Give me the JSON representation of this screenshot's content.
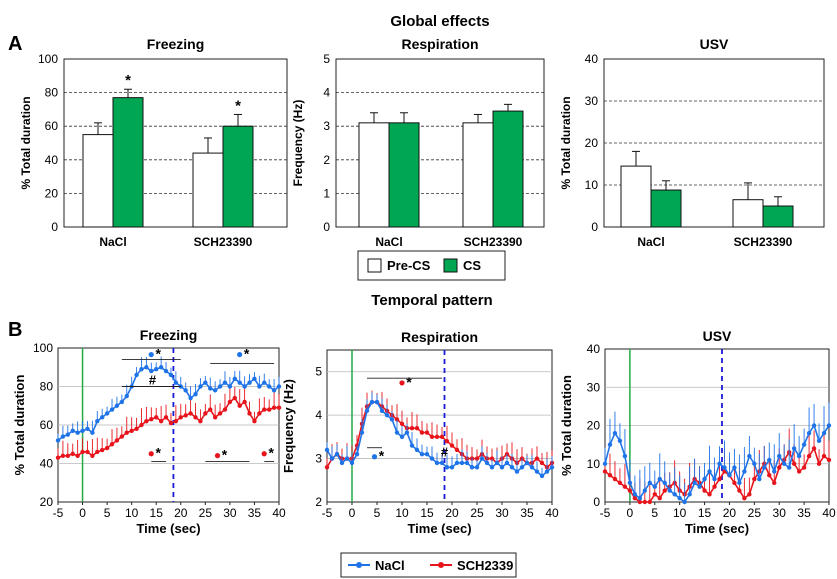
{
  "figure": {
    "panel_a_letter": "A",
    "panel_b_letter": "B",
    "section_a_title": "Global effects",
    "section_b_title": "Temporal pattern"
  },
  "legend_a": {
    "items": [
      "Pre-CS",
      "CS"
    ],
    "colors": [
      "#ffffff",
      "#00a651"
    ]
  },
  "legend_b": {
    "items": [
      "NaCl",
      "SCH2339"
    ],
    "colors": [
      "#1e73e8",
      "#e8141c"
    ]
  },
  "colors": {
    "precs": "#ffffff",
    "cs": "#00a651",
    "nacl": "#1e73e8",
    "sch": "#e8141c",
    "onset": "#22aa44",
    "offset": "#1a1ad6"
  },
  "chart_data": [
    {
      "type": "bar",
      "title": "Freezing",
      "ylabel": "% Total duration",
      "categories": [
        "NaCl",
        "SCH23390"
      ],
      "ylim": [
        0,
        100
      ],
      "yticks": [
        "0",
        "20",
        "40",
        "60",
        "80",
        "100"
      ],
      "series": [
        {
          "name": "Pre-CS",
          "values": [
            55,
            44
          ],
          "errors": [
            7,
            9
          ]
        },
        {
          "name": "CS",
          "values": [
            77,
            60
          ],
          "errors": [
            5,
            7
          ]
        }
      ],
      "annotations": [
        "*",
        "*"
      ],
      "grid": "dashed"
    },
    {
      "type": "bar",
      "title": "Respiration",
      "ylabel": "Frequency (Hz)",
      "categories": [
        "NaCl",
        "SCH23390"
      ],
      "ylim": [
        0,
        5
      ],
      "yticks": [
        "0",
        "1",
        "2",
        "3",
        "4",
        "5"
      ],
      "series": [
        {
          "name": "Pre-CS",
          "values": [
            3.1,
            3.1
          ],
          "errors": [
            0.3,
            0.25
          ]
        },
        {
          "name": "CS",
          "values": [
            3.1,
            3.45
          ],
          "errors": [
            0.3,
            0.2
          ]
        }
      ],
      "annotations": [],
      "grid": "dashed"
    },
    {
      "type": "bar",
      "title": "USV",
      "ylabel": "% Total duration",
      "categories": [
        "NaCl",
        "SCH23390"
      ],
      "ylim": [
        0,
        40
      ],
      "yticks": [
        "0",
        "10",
        "20",
        "30",
        "40"
      ],
      "series": [
        {
          "name": "Pre-CS",
          "values": [
            14.5,
            6.5
          ],
          "errors": [
            3.5,
            4
          ]
        },
        {
          "name": "CS",
          "values": [
            8.8,
            5.0
          ],
          "errors": [
            2.2,
            2.2
          ]
        }
      ],
      "annotations": [],
      "grid": "dashed"
    },
    {
      "type": "line",
      "title": "Freezing",
      "ylabel": "% Total duration",
      "xlabel": "Time (sec)",
      "xlim": [
        -5,
        40
      ],
      "ylim": [
        20,
        100
      ],
      "xticks": [
        "-5",
        "0",
        "5",
        "10",
        "15",
        "20",
        "25",
        "30",
        "35",
        "40"
      ],
      "yticks": [
        "20",
        "40",
        "60",
        "80",
        "100"
      ],
      "onset": 0,
      "offset": 18.5,
      "series": [
        {
          "name": "NaCl",
          "err": 5,
          "x": [
            -5,
            -4,
            -3,
            -2,
            -1,
            0,
            1,
            2,
            3,
            4,
            5,
            6,
            7,
            8,
            9,
            10,
            11,
            12,
            13,
            14,
            15,
            16,
            17,
            18,
            19,
            20,
            21,
            22,
            23,
            24,
            25,
            26,
            27,
            28,
            29,
            30,
            31,
            32,
            33,
            34,
            35,
            36,
            37,
            38,
            39,
            40
          ],
          "y": [
            52,
            54,
            55,
            57,
            56,
            57,
            58,
            56,
            62,
            64,
            66,
            68,
            70,
            72,
            75,
            80,
            86,
            89,
            90,
            88,
            89,
            90,
            88,
            86,
            82,
            80,
            78,
            74,
            76,
            80,
            82,
            79,
            78,
            80,
            82,
            80,
            84,
            82,
            80,
            82,
            84,
            80,
            82,
            80,
            78,
            80
          ]
        },
        {
          "name": "SCH2339",
          "err": 7,
          "x": [
            -5,
            -4,
            -3,
            -2,
            -1,
            0,
            1,
            2,
            3,
            4,
            5,
            6,
            7,
            8,
            9,
            10,
            11,
            12,
            13,
            14,
            15,
            16,
            17,
            18,
            19,
            20,
            21,
            22,
            23,
            24,
            25,
            26,
            27,
            28,
            29,
            30,
            31,
            32,
            33,
            34,
            35,
            36,
            37,
            38,
            39,
            40
          ],
          "y": [
            43,
            44,
            44,
            45,
            44,
            46,
            46,
            44,
            46,
            47,
            48,
            50,
            52,
            54,
            56,
            57,
            58,
            60,
            62,
            63,
            64,
            62,
            64,
            61,
            62,
            64,
            65,
            66,
            64,
            62,
            66,
            68,
            64,
            66,
            68,
            72,
            74,
            70,
            72,
            66,
            62,
            66,
            68,
            68,
            69,
            69
          ]
        }
      ],
      "annotations": [
        "*",
        "*",
        "#",
        "*",
        "*",
        "*"
      ]
    },
    {
      "type": "line",
      "title": "Respiration",
      "ylabel": "Frequency (Hz)",
      "xlabel": "Time (sec)",
      "xlim": [
        -5,
        40
      ],
      "ylim": [
        2,
        5.5
      ],
      "xticks": [
        "-5",
        "0",
        "5",
        "10",
        "15",
        "20",
        "25",
        "30",
        "35",
        "40"
      ],
      "yticks": [
        "2",
        "3",
        "4",
        "5"
      ],
      "onset": 0,
      "offset": 18.5,
      "series": [
        {
          "name": "NaCl",
          "err": 0.25,
          "x": [
            -5,
            -4,
            -3,
            -2,
            -1,
            0,
            1,
            2,
            3,
            4,
            5,
            6,
            7,
            8,
            9,
            10,
            11,
            12,
            13,
            14,
            15,
            16,
            17,
            18,
            19,
            20,
            21,
            22,
            23,
            24,
            25,
            26,
            27,
            28,
            29,
            30,
            31,
            32,
            33,
            34,
            35,
            36,
            37,
            38,
            39,
            40
          ],
          "y": [
            3.2,
            3.0,
            3.1,
            2.9,
            3.0,
            2.9,
            3.1,
            3.6,
            4.1,
            4.3,
            4.3,
            4.1,
            4.0,
            3.9,
            3.6,
            3.5,
            3.6,
            3.3,
            3.2,
            3.1,
            3.1,
            3.0,
            2.9,
            2.9,
            2.8,
            2.8,
            2.9,
            2.9,
            2.9,
            2.8,
            2.8,
            3.0,
            2.9,
            2.8,
            2.9,
            2.8,
            2.9,
            2.8,
            2.7,
            2.8,
            2.9,
            2.8,
            2.7,
            2.6,
            2.7,
            2.8
          ]
        },
        {
          "name": "SCH2339",
          "err": 0.3,
          "x": [
            -5,
            -4,
            -3,
            -2,
            -1,
            0,
            1,
            2,
            3,
            4,
            5,
            6,
            7,
            8,
            9,
            10,
            11,
            12,
            13,
            14,
            15,
            16,
            17,
            18,
            19,
            20,
            21,
            22,
            23,
            24,
            25,
            26,
            27,
            28,
            29,
            30,
            31,
            32,
            33,
            34,
            35,
            36,
            37,
            38,
            39,
            40
          ],
          "y": [
            2.8,
            3.0,
            3.1,
            3.0,
            3.0,
            3.0,
            3.3,
            3.8,
            4.2,
            4.3,
            4.3,
            4.2,
            4.1,
            4.0,
            3.9,
            3.8,
            3.7,
            3.7,
            3.7,
            3.6,
            3.6,
            3.5,
            3.5,
            3.5,
            3.4,
            3.3,
            3.2,
            3.1,
            3.0,
            3.0,
            3.0,
            3.1,
            3.0,
            3.0,
            2.9,
            3.0,
            3.1,
            3.0,
            2.9,
            3.0,
            2.9,
            2.9,
            3.0,
            2.9,
            2.8,
            2.9
          ]
        }
      ],
      "annotations": [
        "*",
        "*",
        "#"
      ]
    },
    {
      "type": "line",
      "title": "USV",
      "ylabel": "% Total duration",
      "xlabel": "Time (sec)",
      "xlim": [
        -5,
        40
      ],
      "ylim": [
        0,
        40
      ],
      "xticks": [
        "-5",
        "0",
        "5",
        "10",
        "15",
        "20",
        "25",
        "30",
        "35",
        "40"
      ],
      "yticks": [
        "0",
        "10",
        "20",
        "30",
        "40"
      ],
      "onset": 0,
      "offset": 18.5,
      "series": [
        {
          "name": "NaCl",
          "err": 6,
          "x": [
            -5,
            -4,
            -3,
            -2,
            -1,
            0,
            1,
            2,
            3,
            4,
            5,
            6,
            7,
            8,
            9,
            10,
            11,
            12,
            13,
            14,
            15,
            16,
            17,
            18,
            19,
            20,
            21,
            22,
            23,
            24,
            25,
            26,
            27,
            28,
            29,
            30,
            31,
            32,
            33,
            34,
            35,
            36,
            37,
            38,
            39,
            40
          ],
          "y": [
            10,
            15,
            18,
            16,
            12,
            5,
            2,
            1,
            3,
            5,
            4,
            6,
            5,
            3,
            2,
            1,
            0,
            2,
            5,
            4,
            6,
            8,
            6,
            10,
            9,
            7,
            9,
            5,
            8,
            12,
            10,
            6,
            9,
            11,
            8,
            12,
            10,
            9,
            14,
            12,
            15,
            18,
            20,
            16,
            18,
            20
          ]
        },
        {
          "name": "SCH2339",
          "err": 5,
          "x": [
            -5,
            -4,
            -3,
            -2,
            -1,
            0,
            1,
            2,
            3,
            4,
            5,
            6,
            7,
            8,
            9,
            10,
            11,
            12,
            13,
            14,
            15,
            16,
            17,
            18,
            19,
            20,
            21,
            22,
            23,
            24,
            25,
            26,
            27,
            28,
            29,
            30,
            31,
            32,
            33,
            34,
            35,
            36,
            37,
            38,
            39,
            40
          ],
          "y": [
            8,
            7,
            6,
            5,
            4,
            3,
            1,
            0,
            0,
            0,
            2,
            1,
            3,
            4,
            5,
            3,
            2,
            4,
            6,
            5,
            3,
            2,
            4,
            6,
            8,
            7,
            5,
            3,
            1,
            2,
            6,
            8,
            10,
            7,
            5,
            9,
            11,
            13,
            10,
            8,
            9,
            12,
            14,
            10,
            12,
            11
          ]
        }
      ],
      "annotations": []
    }
  ]
}
